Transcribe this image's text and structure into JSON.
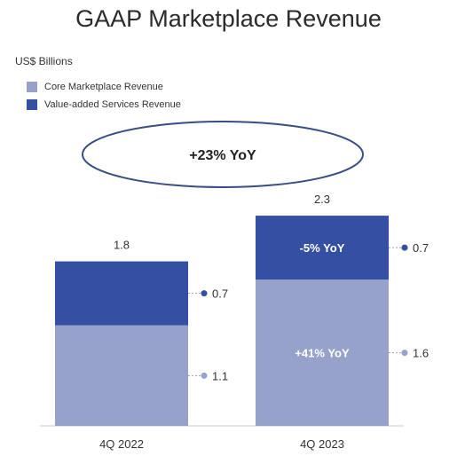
{
  "chart_data": {
    "type": "bar",
    "stacked": true,
    "title": "GAAP Marketplace Revenue",
    "unit_label": "US$ Billions",
    "categories": [
      "4Q 2022",
      "4Q 2023"
    ],
    "series": [
      {
        "name": "Core Marketplace Revenue",
        "color": "#96A2C9",
        "values": [
          1.1,
          1.6
        ],
        "value_labels": [
          "1.1",
          "1.6"
        ],
        "inbar_labels": [
          "",
          "+41% YoY"
        ]
      },
      {
        "name": "Value-added Services Revenue",
        "color": "#354FA3",
        "values": [
          0.7,
          0.7
        ],
        "value_labels": [
          "0.7",
          "0.7"
        ],
        "inbar_labels": [
          "",
          "-5% YoY"
        ]
      }
    ],
    "totals": [
      "1.8",
      "2.3"
    ],
    "callout": "+23% YoY",
    "legend_position": "top-left"
  }
}
